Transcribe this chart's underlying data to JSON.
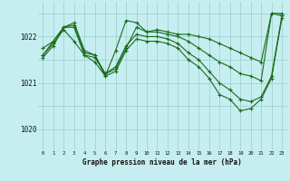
{
  "title": "Graphe pression niveau de la mer (hPa)",
  "bg_color": "#c6eef0",
  "grid_color": "#99cccc",
  "line_color": "#1a6b1a",
  "x_labels": [
    "0",
    "1",
    "2",
    "3",
    "4",
    "5",
    "6",
    "7",
    "8",
    "9",
    "10",
    "11",
    "12",
    "13",
    "14",
    "15",
    "16",
    "17",
    "18",
    "19",
    "20",
    "21",
    "22",
    "23"
  ],
  "yticks": [
    1020,
    1021,
    1022
  ],
  "ylim": [
    1019.55,
    1022.75
  ],
  "xlim": [
    -0.5,
    23.5
  ],
  "series": [
    [
      1021.75,
      1021.9,
      1022.2,
      1022.25,
      1021.65,
      1021.6,
      1021.2,
      1021.3,
      1021.75,
      1022.2,
      1022.1,
      1022.15,
      1022.1,
      1022.05,
      1022.05,
      1022.0,
      1021.95,
      1021.85,
      1021.75,
      1021.65,
      1021.55,
      1021.45,
      1022.5,
      1022.5
    ],
    [
      1021.6,
      1021.9,
      1022.2,
      1022.3,
      1021.7,
      1021.6,
      1021.15,
      1021.7,
      1022.35,
      1022.3,
      1022.1,
      1022.1,
      1022.05,
      1022.0,
      1021.9,
      1021.75,
      1021.6,
      1021.45,
      1021.35,
      1021.2,
      1021.15,
      1021.05,
      1022.5,
      1022.45
    ],
    [
      1021.6,
      1021.85,
      1022.15,
      1021.9,
      1021.6,
      1021.55,
      1021.2,
      1021.35,
      1021.8,
      1022.05,
      1022.0,
      1022.0,
      1021.95,
      1021.85,
      1021.65,
      1021.5,
      1021.25,
      1021.0,
      1020.85,
      1020.65,
      1020.6,
      1020.7,
      1021.15,
      1022.45
    ],
    [
      1021.55,
      1021.8,
      1022.2,
      1022.2,
      1021.6,
      1021.45,
      1021.15,
      1021.25,
      1021.7,
      1021.95,
      1021.9,
      1021.9,
      1021.85,
      1021.75,
      1021.5,
      1021.35,
      1021.1,
      1020.75,
      1020.65,
      1020.4,
      1020.45,
      1020.65,
      1021.1,
      1022.4
    ]
  ]
}
